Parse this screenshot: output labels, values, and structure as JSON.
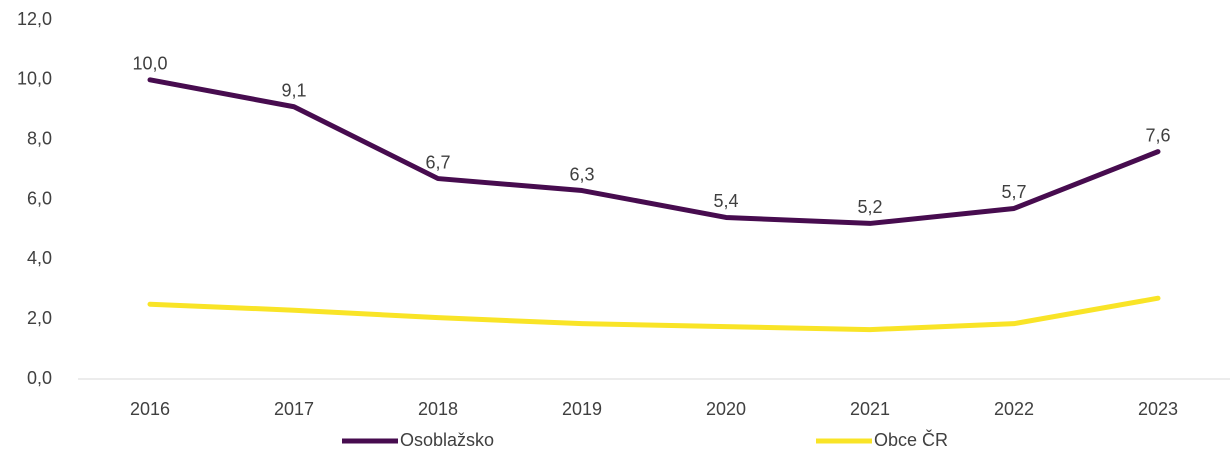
{
  "chart_data": {
    "type": "line",
    "categories": [
      "2016",
      "2017",
      "2018",
      "2019",
      "2020",
      "2021",
      "2022",
      "2023"
    ],
    "series": [
      {
        "name": "Osoblažsko",
        "color": "#470c4f",
        "values": [
          10.0,
          9.1,
          6.7,
          6.3,
          5.4,
          5.2,
          5.7,
          7.6
        ],
        "value_labels": [
          "10,0",
          "9,1",
          "6,7",
          "6,3",
          "5,4",
          "5,2",
          "5,7",
          "7,6"
        ]
      },
      {
        "name": "Obce ČR",
        "color": "#f9e427",
        "values": [
          2.5,
          2.3,
          2.05,
          1.85,
          1.75,
          1.65,
          1.85,
          2.7
        ]
      }
    ],
    "ylim": [
      0,
      12
    ],
    "yticks": [
      {
        "value": 0,
        "label": "0,0"
      },
      {
        "value": 2,
        "label": "2,0"
      },
      {
        "value": 4,
        "label": "4,0"
      },
      {
        "value": 6,
        "label": "6,0"
      },
      {
        "value": 8,
        "label": "8,0"
      },
      {
        "value": 10,
        "label": "10,0"
      },
      {
        "value": 12,
        "label": "12,0"
      }
    ],
    "grid": false,
    "legend": "bottom"
  }
}
